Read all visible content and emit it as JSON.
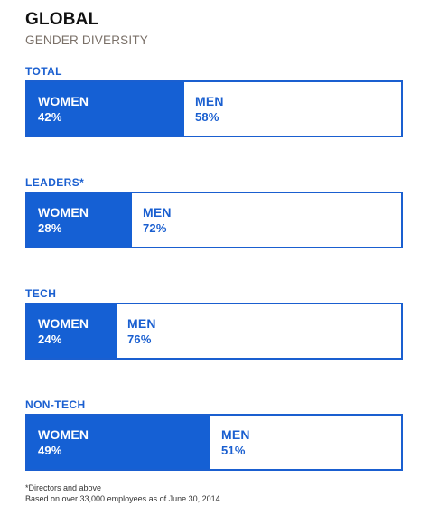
{
  "title": "GLOBAL",
  "subtitle": "GENDER DIVERSITY",
  "chart_data": {
    "type": "bar",
    "stacked": true,
    "orientation": "horizontal",
    "title": "GLOBAL",
    "subtitle": "GENDER DIVERSITY",
    "categories": [
      "TOTAL",
      "LEADERS*",
      "TECH",
      "NON-TECH"
    ],
    "series": [
      {
        "name": "WOMEN",
        "values": [
          42,
          28,
          24,
          49
        ],
        "labels": [
          "42%",
          "28%",
          "24%",
          "49%"
        ],
        "color": "#1560d4"
      },
      {
        "name": "MEN",
        "values": [
          58,
          72,
          76,
          51
        ],
        "labels": [
          "58%",
          "72%",
          "76%",
          "51%"
        ],
        "color": "#ffffff"
      }
    ],
    "xlim": [
      0,
      100
    ],
    "grid": false
  },
  "footnotes": {
    "line1": "*Directors and above",
    "line2": "Based on over 33,000 employees as of June 30, 2014"
  },
  "colors": {
    "accent": "#1a5fd0",
    "women_fill": "#1560d4",
    "title_text": "#111111",
    "subtitle_text": "#7a7068"
  }
}
